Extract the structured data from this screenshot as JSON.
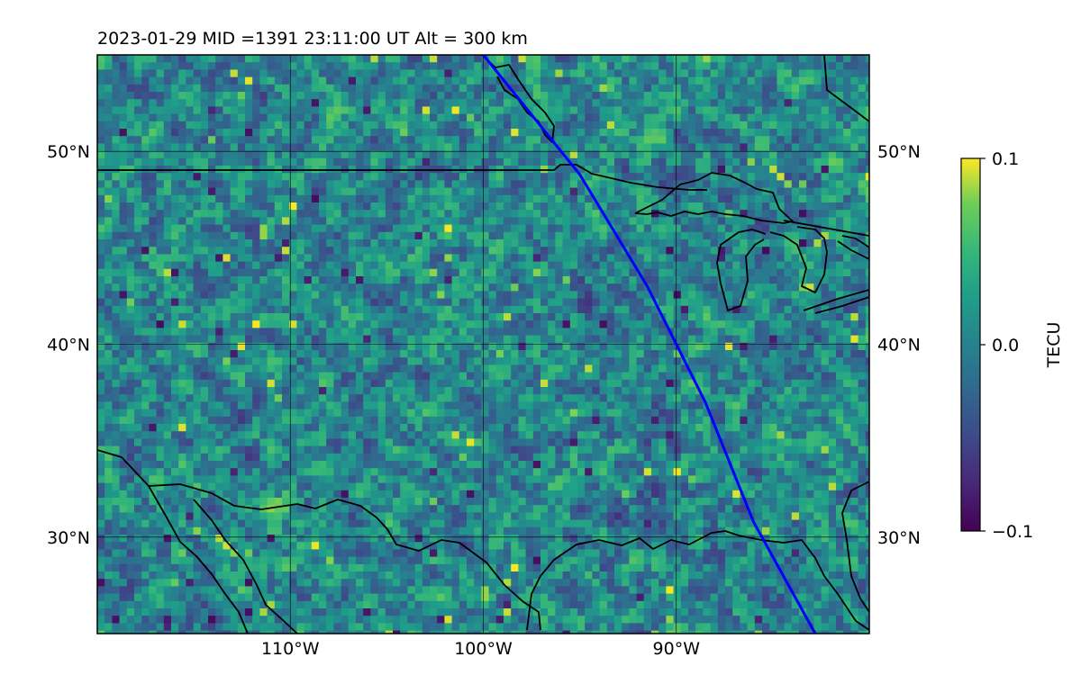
{
  "title": "2023-01-29  MID =1391    23:11:00  UT  Alt = 300 km",
  "map": {
    "lon_range": [
      -120,
      -80
    ],
    "lat_range": [
      25,
      55
    ],
    "lon_ticks": [
      {
        "value": -110,
        "label": "110°W"
      },
      {
        "value": -100,
        "label": "100°W"
      },
      {
        "value": -90,
        "label": "90°W"
      }
    ],
    "lat_ticks": [
      {
        "value": 50,
        "label": "50°N"
      },
      {
        "value": 40,
        "label": "40°N"
      },
      {
        "value": 30,
        "label": "30°N"
      }
    ],
    "gridlines": true,
    "field_colormap": "viridis",
    "track_color": "#0000ff",
    "coast_color": "#000000",
    "track": [
      [
        -100,
        55
      ],
      [
        -95,
        48.8
      ],
      [
        -91.5,
        43
      ],
      [
        -88.5,
        37
      ],
      [
        -86,
        30.8
      ],
      [
        -82.8,
        25
      ]
    ]
  },
  "colorbar": {
    "label": "TECU",
    "min": -0.1,
    "max": 0.1,
    "ticks": [
      {
        "value": 0.1,
        "label": "0.1"
      },
      {
        "value": 0.0,
        "label": "0.0"
      },
      {
        "value": -0.1,
        "label": "−0.1"
      }
    ],
    "colormap": "viridis"
  }
}
